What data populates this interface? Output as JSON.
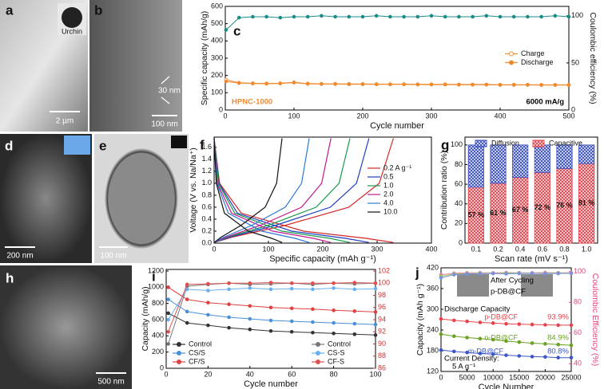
{
  "images": [
    {
      "label": "a",
      "inset": "Urchin",
      "scale_bar": "2 µm"
    },
    {
      "label": "b",
      "annotation": "30 nm",
      "scale_bar": "100 nm"
    },
    {
      "label": "d",
      "scale_bar": "200 nm"
    },
    {
      "label": "e",
      "scale_bar": "100 nm"
    },
    {
      "label": "h",
      "scale_bar": "500 nm"
    }
  ],
  "chart_data": [
    {
      "label": "c",
      "type": "line",
      "markers": true,
      "x": [
        1,
        20,
        40,
        60,
        80,
        100,
        120,
        140,
        160,
        180,
        200,
        220,
        240,
        260,
        280,
        300,
        320,
        340,
        360,
        380,
        400,
        420,
        440,
        460,
        480,
        500
      ],
      "xlim": [
        0,
        500
      ],
      "xticks": [
        0,
        100,
        200,
        300,
        400,
        500
      ],
      "ylim": [
        0,
        600
      ],
      "yticks": [
        0,
        100,
        200,
        300,
        400,
        500,
        600
      ],
      "y2lim": [
        0,
        110
      ],
      "y2ticks": [
        0,
        50,
        100
      ],
      "x_label": "Cycle number",
      "y_label": "Specific capacity (mAh/g)",
      "y2_label": "Coulombic efficiency (%)",
      "legend": "center right",
      "annotations": [
        "HPNC-1000",
        "6000 mA/g"
      ],
      "series": [
        {
          "name": "Charge",
          "color": "#f28a2e",
          "marker": "open",
          "values": [
            175,
            158,
            155,
            154,
            155,
            160,
            153,
            152,
            152,
            151,
            151,
            150,
            150,
            150,
            149,
            149,
            149,
            148,
            148,
            148,
            147,
            147,
            147,
            146,
            146,
            146
          ]
        },
        {
          "name": "Discharge",
          "color": "#f28a2e",
          "values": [
            165,
            156,
            153,
            152,
            153,
            158,
            151,
            150,
            150,
            149,
            149,
            148,
            148,
            148,
            147,
            147,
            147,
            146,
            146,
            146,
            145,
            145,
            145,
            144,
            144,
            144
          ]
        },
        {
          "color": "#1a8c86",
          "axis": "y2",
          "values": [
            85,
            98,
            99,
            99,
            98,
            99,
            99,
            100,
            99,
            99,
            99,
            100,
            99,
            99,
            99,
            100,
            99,
            99,
            99,
            100,
            99,
            99,
            99,
            99,
            100,
            99
          ]
        }
      ]
    },
    {
      "label": "f",
      "type": "line",
      "xlim": [
        0,
        400
      ],
      "xticks": [
        0,
        100,
        200,
        300,
        400
      ],
      "ylim": [
        0,
        1.77
      ],
      "yticks": [
        {
          "value": 0,
          "label": "0.0"
        },
        0.2,
        0.4,
        0.6,
        0.8,
        {
          "value": 1,
          "label": "1.0"
        },
        1.2,
        1.4,
        1.6
      ],
      "x_label": "Specific capacity (mAh g⁻¹)",
      "y_label": "Voltage (V vs. Na/Na⁺)",
      "legend": "center right",
      "series": [
        {
          "name": "0.2 A g⁻¹",
          "color": "#d62728",
          "x": [
            0,
            10,
            50,
            165,
            280,
            330,
            null,
            0,
            33,
            132,
            248,
            304,
            330
          ],
          "values": [
            1.75,
            1.0,
            0.5,
            0.2,
            0.08,
            0.01,
            null,
            0.01,
            0.1,
            0.3,
            0.6,
            1.0,
            1.75
          ]
        },
        {
          "name": "0.5",
          "color": "#1f3fbf",
          "x": [
            0,
            9,
            43,
            143,
            242,
            285,
            null,
            0,
            29,
            114,
            214,
            262,
            285
          ],
          "values": [
            1.75,
            1.0,
            0.5,
            0.2,
            0.08,
            0.01,
            null,
            0.01,
            0.1,
            0.3,
            0.6,
            1.0,
            1.75
          ]
        },
        {
          "name": "1.0",
          "color": "#1a9a4a",
          "x": [
            0,
            8,
            38,
            125,
            213,
            250,
            null,
            0,
            25,
            100,
            188,
            230,
            250
          ],
          "values": [
            1.75,
            1.0,
            0.5,
            0.2,
            0.08,
            0.01,
            null,
            0.01,
            0.1,
            0.3,
            0.6,
            1.0,
            1.75
          ]
        },
        {
          "name": "2.0",
          "color": "#c2188f",
          "x": [
            0,
            6,
            32,
            108,
            183,
            215,
            null,
            0,
            22,
            86,
            161,
            198,
            215
          ],
          "values": [
            1.75,
            1.0,
            0.5,
            0.2,
            0.08,
            0.01,
            null,
            0.01,
            0.1,
            0.3,
            0.6,
            1.0,
            1.75
          ]
        },
        {
          "name": "4.0",
          "color": "#2a7bd6",
          "x": [
            0,
            5,
            26,
            88,
            149,
            175,
            null,
            0,
            18,
            70,
            131,
            161,
            175
          ],
          "values": [
            1.75,
            1.0,
            0.5,
            0.2,
            0.08,
            0.01,
            null,
            0.01,
            0.1,
            0.3,
            0.6,
            1.0,
            1.75
          ]
        },
        {
          "name": "10.0",
          "color": "#111111",
          "x": [
            0,
            4,
            19,
            63,
            106,
            125,
            null,
            0,
            13,
            50,
            94,
            115,
            125
          ],
          "values": [
            1.75,
            1.0,
            0.5,
            0.2,
            0.08,
            0.01,
            null,
            0.01,
            0.1,
            0.3,
            0.6,
            1.0,
            1.75
          ]
        }
      ]
    },
    {
      "label": "g",
      "type": "bar",
      "stacked": true,
      "categories": [
        "0.1",
        "0.2",
        "0.4",
        "0.6",
        "0.8",
        "1.0"
      ],
      "ylim": [
        0,
        108
      ],
      "yticks": [
        0,
        20,
        40,
        60,
        80,
        100
      ],
      "x_label": "Scan rate (mV s⁻¹)",
      "y_label": "Contribution ratio (%)",
      "legend": "upper center",
      "series": [
        {
          "name": "Capacitive",
          "color": "#e8424a",
          "values": [
            57,
            61,
            67,
            72,
            76,
            81
          ],
          "value_labels": [
            "57 %",
            "61 %",
            "67 %",
            "72 %",
            "76 %",
            "81 %"
          ]
        },
        {
          "name": "Diffusion",
          "color": "#3a4fc4",
          "values": [
            43,
            39,
            33,
            28,
            24,
            19
          ]
        }
      ]
    },
    {
      "label": "i",
      "type": "line",
      "markers": true,
      "x": [
        1,
        10,
        20,
        30,
        40,
        50,
        60,
        70,
        80,
        90,
        100
      ],
      "xlim": [
        0,
        100
      ],
      "xticks": [
        0,
        20,
        40,
        60,
        80,
        100
      ],
      "ylim": [
        0,
        1220
      ],
      "yticks": [
        0,
        200,
        400,
        600,
        800,
        1000,
        1200
      ],
      "y2lim": [
        86,
        102.27
      ],
      "y2ticks": [
        86,
        88,
        90,
        92,
        94,
        96,
        98,
        100,
        102
      ],
      "y2_color": "#d03030",
      "x_label": "Cycle number",
      "y_label": "Capacity (mAh/g)",
      "legend": "lower left",
      "series": [
        {
          "name": "Control",
          "color": "#333333",
          "values": [
            680,
            560,
            530,
            500,
            480,
            460,
            450,
            440,
            430,
            420,
            410
          ]
        },
        {
          "name": "CS/S",
          "color": "#4a90d9",
          "values": [
            850,
            700,
            660,
            630,
            610,
            590,
            580,
            570,
            560,
            550,
            540
          ]
        },
        {
          "name": "CF/S",
          "color": "#e04040",
          "values": [
            1000,
            850,
            810,
            790,
            770,
            750,
            740,
            730,
            715,
            705,
            695
          ]
        },
        {
          "name": "Control",
          "color": "#777777",
          "axis": "y2",
          "values": [
            90,
            99.5,
            99.8,
            100,
            99.8,
            99.9,
            100,
            99.8,
            100,
            99.9,
            100
          ]
        },
        {
          "name": "CS-S",
          "color": "#6ab0f0",
          "axis": "y2",
          "values": [
            94,
            99,
            98.8,
            99,
            99.2,
            99,
            99.1,
            99,
            99.2,
            99,
            99.1
          ]
        },
        {
          "name": "CF-S",
          "color": "#e05050",
          "axis": "y2",
          "values": [
            92,
            99.8,
            99.9,
            100,
            100,
            100.1,
            100,
            100,
            100,
            100.1,
            100
          ]
        }
      ]
    },
    {
      "label": "j",
      "type": "line",
      "markers": true,
      "x": [
        0,
        2500,
        5000,
        7500,
        10000,
        12500,
        15000,
        17500,
        20000,
        22500,
        25000
      ],
      "xlim": [
        0,
        25000
      ],
      "xticks": [
        0,
        5000,
        10000,
        15000,
        20000,
        25000
      ],
      "ylim": [
        120,
        420
      ],
      "yticks": [
        120,
        180,
        240,
        300,
        360,
        420
      ],
      "y2lim": [
        35,
        102.5
      ],
      "y2ticks": [
        40,
        60,
        80,
        100
      ],
      "y2_color": "#e8407a",
      "x_label": "Cycle Number",
      "y_label": "Capacity (mAh g⁻¹)",
      "y2_label": "Coulombic Efficiency (%)",
      "legend": "inline",
      "annotations": [
        "Discharge Capacity",
        "Current Density:",
        "5 A g⁻¹",
        "93.9%",
        "84.9%",
        "80.8%",
        "After Cycling",
        "p-DB@CF"
      ],
      "series": [
        {
          "name": "p-DB@CF",
          "color": "#e8424a",
          "values": [
            272,
            268,
            265,
            262,
            260,
            258,
            257,
            256,
            255,
            254,
            254
          ]
        },
        {
          "name": "o-DB@CF",
          "color": "#6aa121",
          "values": [
            228,
            222,
            218,
            215,
            212,
            208,
            205,
            202,
            200,
            198,
            196
          ]
        },
        {
          "name": "m-DB@CF",
          "color": "#3a55c8",
          "values": [
            182,
            178,
            175,
            172,
            170,
            167,
            165,
            163,
            162,
            160,
            160
          ]
        },
        {
          "color": "#f07a9a",
          "axis": "y2",
          "values": [
            98,
            99,
            99.2,
            99.3,
            99.2,
            99.4,
            99.3,
            99.2,
            99.4,
            99.3,
            99.3
          ]
        },
        {
          "color": "#8cc860",
          "axis": "y2",
          "values": [
            97,
            98.5,
            98.8,
            99,
            98.9,
            99,
            99.1,
            98.9,
            99,
            99.1,
            99
          ]
        },
        {
          "color": "#7a90e0",
          "axis": "y2",
          "values": [
            96,
            98,
            98.5,
            98.7,
            98.8,
            98.6,
            98.8,
            98.9,
            98.7,
            98.8,
            98.9
          ]
        }
      ]
    }
  ]
}
